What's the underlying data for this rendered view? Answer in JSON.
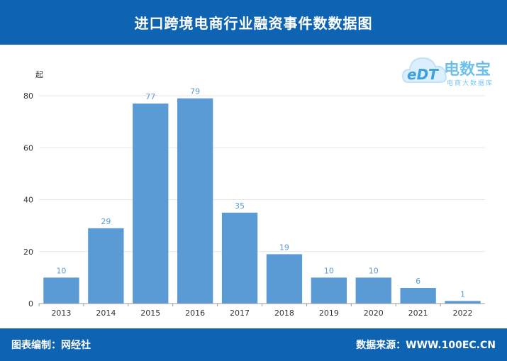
{
  "header": {
    "title": "进口跨境电商行业融资事件数数据图"
  },
  "footer": {
    "left": "图表编制：网经社",
    "right": "数据来源：WWW.100EC.CN"
  },
  "logo": {
    "icon": "cloud-logo-icon",
    "mark": "eDT",
    "brand": "电数宝",
    "sub": "电商大数据库"
  },
  "chart_data": {
    "type": "bar",
    "ylabel": "起",
    "categories": [
      "2013",
      "2014",
      "2015",
      "2016",
      "2017",
      "2018",
      "2019",
      "2020",
      "2021",
      "2022"
    ],
    "values": [
      10,
      29,
      77,
      79,
      35,
      19,
      10,
      10,
      6,
      1
    ],
    "ylim": [
      0,
      80
    ],
    "yticks": [
      0,
      20,
      40,
      60,
      80
    ],
    "grid": true,
    "bar_color": "#5b9bd5",
    "label_color": "#5b9bd5"
  }
}
